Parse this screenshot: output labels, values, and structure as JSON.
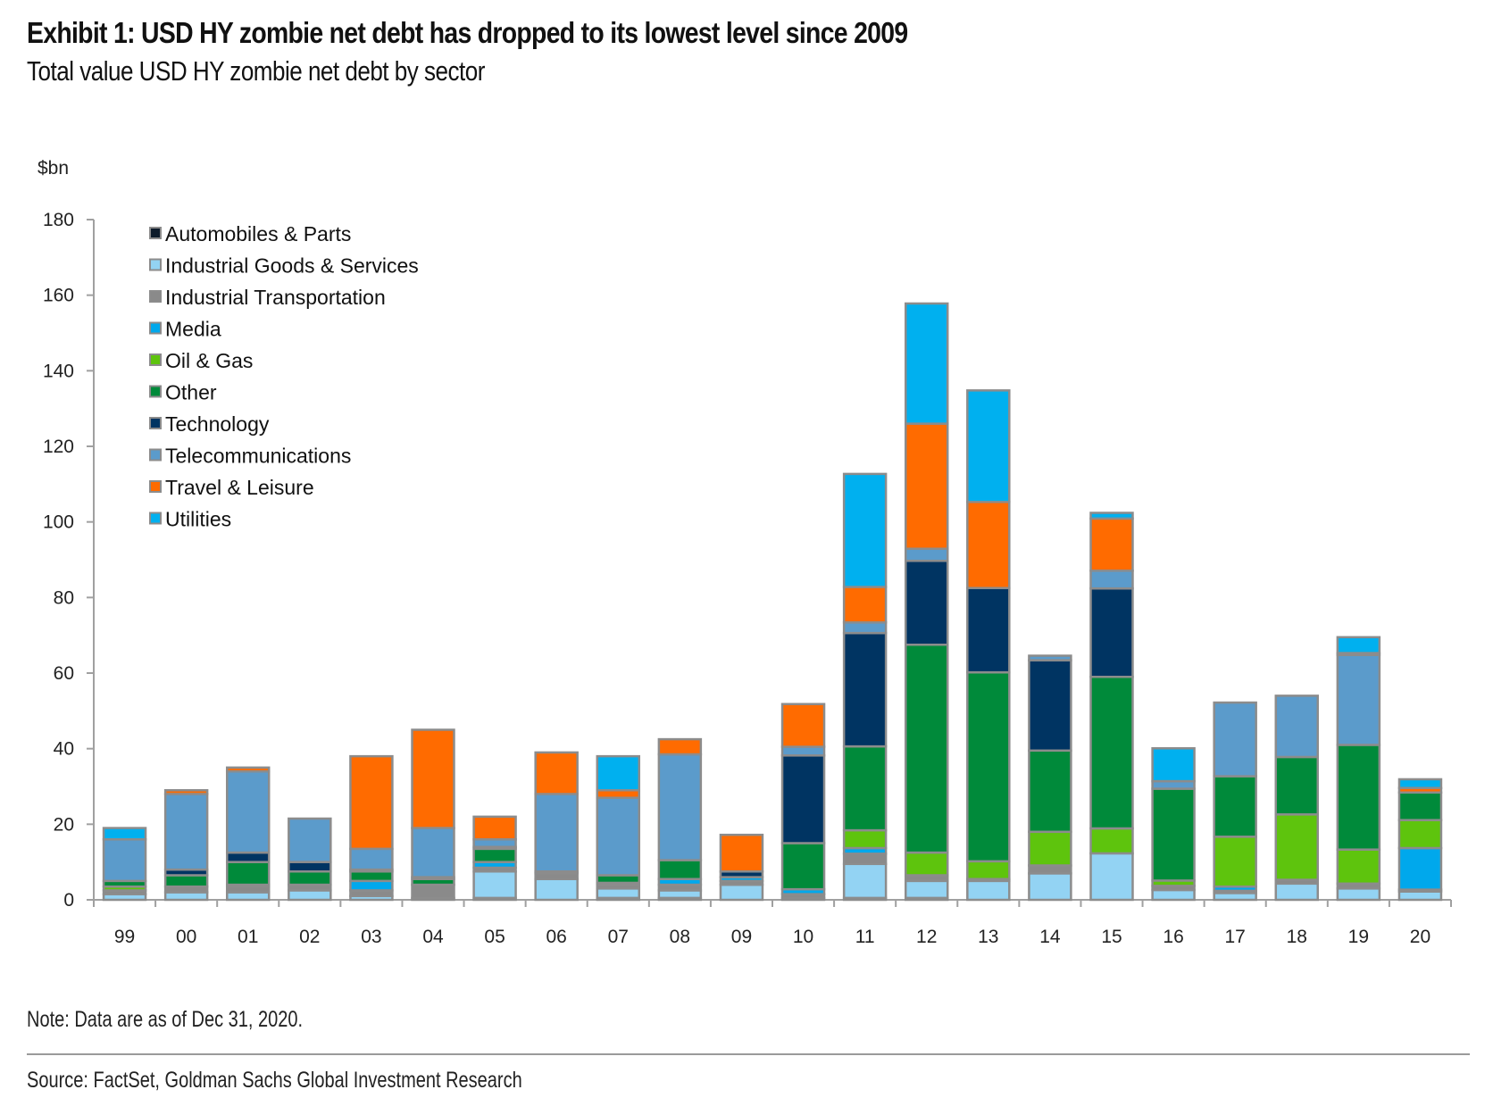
{
  "header": {
    "title": "Exhibit 1: USD HY zombie net debt has dropped to its lowest level since 2009",
    "subtitle": "Total value USD HY zombie net debt by sector"
  },
  "footer": {
    "note": "Note: Data are as of Dec 31, 2020.",
    "source": "Source: FactSet, Goldman Sachs Global Investment Research"
  },
  "chart_data": {
    "type": "bar",
    "stacked": true,
    "title": "Total value USD HY zombie net debt by sector",
    "xlabel": "",
    "ylabel": "$bn",
    "ylim": [
      0,
      180
    ],
    "yticks": [
      0,
      20,
      40,
      60,
      80,
      100,
      120,
      140,
      160,
      180
    ],
    "grid": false,
    "legend_position": "top-left",
    "categories": [
      "99",
      "00",
      "01",
      "02",
      "03",
      "04",
      "05",
      "06",
      "07",
      "08",
      "09",
      "10",
      "11",
      "12",
      "13",
      "14",
      "15",
      "16",
      "17",
      "18",
      "19",
      "20"
    ],
    "series": [
      {
        "name": "Automobiles & Parts",
        "color": "#0d1b2a",
        "values": [
          0,
          0,
          0,
          0,
          0,
          0.5,
          0.5,
          0,
          0.5,
          0.5,
          0,
          0.5,
          0.5,
          0.5,
          0,
          0,
          0,
          0,
          0,
          0,
          0,
          0
        ]
      },
      {
        "name": "Industrial Goods & Services",
        "color": "#93d3f3",
        "values": [
          1.5,
          2,
          2,
          2.5,
          1,
          0,
          7,
          5.5,
          2.5,
          2,
          4,
          0,
          9,
          4.5,
          5,
          7,
          12.3,
          2.6,
          1.8,
          4.3,
          3,
          2.2
        ]
      },
      {
        "name": "Industrial Transportation",
        "color": "#8a8a8a",
        "values": [
          1,
          1.5,
          1.5,
          1.5,
          1.5,
          3.5,
          1,
          1.5,
          1,
          1.5,
          1,
          1,
          2.7,
          1.5,
          0.5,
          2.1,
          0,
          1.1,
          0.6,
          1,
          1.3,
          0.5
        ]
      },
      {
        "name": "Media",
        "color": "#00a8ec",
        "values": [
          0,
          0,
          0.5,
          0,
          2.5,
          0,
          1.5,
          0,
          0.5,
          1.5,
          1,
          1.3,
          1.5,
          0,
          0,
          0,
          0,
          0,
          1.1,
          0,
          0,
          11
        ]
      },
      {
        "name": "Oil & Gas",
        "color": "#5ec40d",
        "values": [
          1,
          0,
          0,
          0,
          0,
          0,
          0,
          0,
          0,
          0,
          0,
          0,
          4.7,
          6,
          4.7,
          8.9,
          6.6,
          1.4,
          13.2,
          17.3,
          9,
          7.4
        ]
      },
      {
        "name": "Other",
        "color": "#008a3a",
        "values": [
          1.5,
          3,
          6,
          3.5,
          2.5,
          1.5,
          3.5,
          0.5,
          2,
          5,
          0,
          12.2,
          22.2,
          55,
          50,
          21.5,
          40.1,
          24.3,
          16,
          15.2,
          27.7,
          7.3
        ]
      },
      {
        "name": "Technology",
        "color": "#003462",
        "values": [
          0,
          1.5,
          2.5,
          2.5,
          0.5,
          0.5,
          0.5,
          0,
          0,
          0,
          1.5,
          23.2,
          30,
          22.2,
          22.3,
          23.9,
          23.4,
          0,
          0,
          0,
          0,
          0
        ]
      },
      {
        "name": "Telecommunications",
        "color": "#5b9bcb",
        "values": [
          11,
          20,
          21.5,
          11.5,
          5.5,
          13,
          2,
          20.5,
          20.5,
          28,
          0,
          2.3,
          2.8,
          3.2,
          0,
          1.2,
          4.7,
          2,
          19.5,
          16.2,
          23.8,
          0
        ]
      },
      {
        "name": "Travel & Leisure",
        "color": "#ff6b00",
        "values": [
          0,
          1,
          1,
          0,
          24.5,
          26,
          6,
          11,
          2,
          4,
          9.7,
          11.3,
          9.4,
          33.1,
          22.8,
          0,
          13.8,
          0,
          0,
          0,
          0.5,
          1.2
        ]
      },
      {
        "name": "Utilities",
        "color": "#00b0ef",
        "values": [
          3,
          0,
          0,
          0,
          0,
          0,
          0,
          0,
          9,
          0,
          0,
          0,
          29.9,
          31.8,
          29.5,
          0,
          1.5,
          8.7,
          0,
          0,
          4.2,
          2.3
        ]
      }
    ]
  }
}
